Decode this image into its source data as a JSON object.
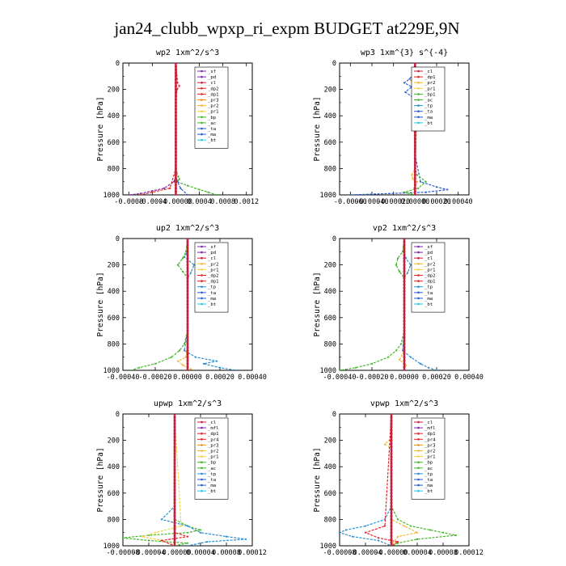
{
  "title": "jan24_clubb_wpxp_ri_expm  BUDGET at229E,9N",
  "colors": {
    "sf": "#7b2aa8",
    "pd": "#7b2aa8",
    "cl": "#c81e3c",
    "dp2": "#e0262a",
    "dp1": "#e0262a",
    "pr3": "#f08c1a",
    "pr2": "#f2b733",
    "pr1": "#f0d24a",
    "bp": "#43b82a",
    "ac": "#43b82a",
    "ta": "#2a5fd0",
    "tp": "#2a8fd0",
    "ma": "#2a5fd0",
    "bt": "#28c9df",
    "mfl": "#7b2aa8",
    "pr4": "#e0262a"
  },
  "chart_data": [
    {
      "type": "line",
      "title": "wp2   1xm^2/s^3",
      "ylabel": "Pressure [hPa]",
      "ylim": [
        1000,
        0
      ],
      "xlim": [
        -0.0009,
        0.0013
      ],
      "xticks": [
        "-0.0008",
        "-0.0004",
        "-0.00000",
        "0.0004",
        "0.0008",
        "0.0012"
      ],
      "xtick_values": [
        -0.0008,
        -0.0004,
        0.0,
        0.0004,
        0.0008,
        0.0012
      ],
      "yticks": [
        0,
        200,
        400,
        600,
        800,
        1000
      ],
      "legend_position": "upper-right",
      "legend": [
        "_sf",
        "_pd",
        "_cl",
        "_dp2",
        "_dp1",
        "_pr3",
        "_pr2",
        "_pr1",
        "_bp",
        "_ac",
        "_ta",
        "_ma",
        "_bt"
      ],
      "series": [
        {
          "name": "_pd",
          "key": "pd",
          "p": [
            0,
            150,
            200,
            300,
            700,
            850,
            900,
            950,
            970,
            990,
            1000
          ],
          "v": [
            0,
            0,
            1e-05,
            0,
            0,
            0,
            -3e-05,
            -0.0002,
            -0.0004,
            -0.0006,
            -0.0008
          ]
        },
        {
          "name": "_dp1",
          "key": "dp1",
          "p": [
            0,
            150,
            175,
            200,
            300,
            800,
            950,
            980,
            1000
          ],
          "v": [
            0,
            3e-05,
            6e-05,
            2e-05,
            0,
            0,
            -0.0001,
            -0.0004,
            -0.0006
          ]
        },
        {
          "name": "_ac",
          "key": "ac",
          "p": [
            0,
            800,
            860,
            880,
            900,
            930,
            960,
            980,
            1000
          ],
          "v": [
            0,
            0,
            4e-05,
            6e-05,
            2e-05,
            0.0002,
            0.0004,
            0.00055,
            0.0007
          ]
        },
        {
          "name": "_ta",
          "key": "ta",
          "p": [
            0,
            850,
            900,
            950,
            1000
          ],
          "v": [
            0,
            -1e-05,
            3e-05,
            8e-05,
            0.0002
          ]
        },
        {
          "name": "_cl",
          "key": "cl",
          "p": [
            0,
            1000
          ],
          "v": [
            0,
            0
          ]
        }
      ]
    },
    {
      "type": "line",
      "title": "wp3   1xm^{3} s^{-4}",
      "ylabel": "Pressure [hPa]",
      "ylim": [
        1000,
        0
      ],
      "xlim": [
        -0.0007,
        0.0005
      ],
      "xticks": [
        "-0.00060",
        "-0.00040",
        "-0.00020",
        "0.00000",
        "0.00020",
        "0.00040"
      ],
      "xtick_values": [
        -0.0006,
        -0.0004,
        -0.0002,
        0.0,
        0.0002,
        0.0004
      ],
      "yticks": [
        0,
        200,
        400,
        600,
        800,
        1000
      ],
      "legend_position": "upper-right",
      "legend": [
        "_cl",
        "_dp1",
        "_pr2",
        "_pr1",
        "_bp1",
        "_ac",
        "_tp",
        "_ta",
        "_ma",
        "_bt"
      ],
      "series": [
        {
          "name": "_tp",
          "key": "ta",
          "p": [
            0,
            80,
            120,
            150,
            180,
            220,
            260,
            300,
            350,
            400,
            450,
            700,
            900,
            940,
            960,
            980,
            1000
          ],
          "v": [
            0,
            -2e-05,
            -5e-05,
            -0.0001,
            -3e-05,
            -9e-05,
            -2e-05,
            3e-05,
            -2e-05,
            2e-05,
            0,
            0,
            5e-05,
            0.0002,
            0.0003,
            0.0001,
            -0.0006
          ]
        },
        {
          "name": "_ac",
          "key": "ac",
          "p": [
            0,
            100,
            150,
            200,
            250,
            300,
            800,
            850,
            900,
            950,
            980,
            1000
          ],
          "v": [
            0,
            2e-05,
            5e-05,
            4e-05,
            5e-05,
            2e-05,
            0,
            2e-05,
            0.0001,
            3e-05,
            -0.0001,
            0
          ]
        },
        {
          "name": "_pr2",
          "key": "pr2",
          "p": [
            0,
            100,
            130,
            160,
            800,
            850,
            880,
            900,
            950,
            1000
          ],
          "v": [
            0,
            -1e-05,
            -4e-05,
            -1e-05,
            0,
            -3e-05,
            -2e-05,
            2e-05,
            -1e-05,
            0
          ]
        },
        {
          "name": "_cl",
          "key": "cl",
          "p": [
            0,
            1000
          ],
          "v": [
            0,
            0
          ]
        }
      ]
    },
    {
      "type": "line",
      "title": "up2   1xm^2/s^3",
      "ylabel": "Pressure [hPa]",
      "ylim": [
        1000,
        0
      ],
      "xlim": [
        -0.0004,
        0.0004
      ],
      "xticks": [
        "-0.00040",
        "-0.00020",
        "0.00000",
        "0.00020",
        "0.00040"
      ],
      "xtick_values": [
        -0.0004,
        -0.0002,
        0.0,
        0.0002,
        0.0004
      ],
      "yticks": [
        0,
        200,
        400,
        600,
        800,
        1000
      ],
      "legend_position": "upper-right",
      "legend": [
        "_sf",
        "_pd",
        "_cl",
        "_pr2",
        "_pr1",
        "_dp2",
        "_dp1",
        "_tp",
        "_ta",
        "_ma",
        "_bt"
      ],
      "series": [
        {
          "name": "_tp",
          "key": "tp",
          "p": [
            0,
            100,
            140,
            200,
            260,
            300,
            700,
            850,
            900,
            930,
            950,
            980,
            1000
          ],
          "v": [
            0,
            0,
            -2e-05,
            4e-05,
            2e-05,
            0,
            0,
            -2e-05,
            5e-05,
            0.00018,
            0.0001,
            0.0002,
            0.0003
          ]
        },
        {
          "name": "_dp2",
          "key": "ac",
          "p": [
            0,
            100,
            150,
            200,
            250,
            300,
            700,
            800,
            850,
            900,
            950,
            980,
            1000
          ],
          "v": [
            0,
            -1e-05,
            -3e-05,
            -6e-05,
            -3e-05,
            0,
            0,
            -2e-05,
            -5e-05,
            -0.0001,
            -0.0002,
            -0.0003,
            -0.00035
          ]
        },
        {
          "name": "_pr2",
          "key": "pr2",
          "p": [
            0,
            800,
            900,
            930,
            960,
            990,
            1000
          ],
          "v": [
            0,
            0,
            -1e-05,
            -6e-05,
            -3e-05,
            2e-05,
            0
          ]
        },
        {
          "name": "_cl",
          "key": "cl",
          "p": [
            0,
            1000
          ],
          "v": [
            0,
            0
          ]
        }
      ]
    },
    {
      "type": "line",
      "title": "vp2   1xm^2/s^3",
      "ylabel": "Pressure [hPa]",
      "ylim": [
        1000,
        0
      ],
      "xlim": [
        -0.0004,
        0.0004
      ],
      "xticks": [
        "-0.00040",
        "-0.00020",
        "0.00000",
        "0.00020",
        "0.00040"
      ],
      "xtick_values": [
        -0.0004,
        -0.0002,
        0.0,
        0.0002,
        0.0004
      ],
      "yticks": [
        0,
        200,
        400,
        600,
        800,
        1000
      ],
      "legend_position": "upper-right",
      "legend": [
        "_sf",
        "_pd",
        "_cl",
        "_pr2",
        "_pr1",
        "_dp2",
        "_dp1",
        "_tp",
        "_ta",
        "_ma",
        "_bt"
      ],
      "series": [
        {
          "name": "_tp",
          "key": "tp",
          "p": [
            0,
            100,
            150,
            200,
            260,
            300,
            700,
            850,
            900,
            950,
            980,
            1000
          ],
          "v": [
            0,
            0,
            1e-05,
            4e-05,
            2e-05,
            0,
            0,
            -1e-05,
            4e-05,
            0.0001,
            0.00015,
            0.0002
          ]
        },
        {
          "name": "_dp2",
          "key": "ac",
          "p": [
            0,
            100,
            150,
            200,
            250,
            300,
            700,
            800,
            850,
            900,
            950,
            980,
            1000
          ],
          "v": [
            0,
            -1e-05,
            -4e-05,
            -5e-05,
            -3e-05,
            0,
            0,
            -2e-05,
            -5e-05,
            -0.0001,
            -0.0002,
            -0.0003,
            -0.0004
          ]
        },
        {
          "name": "_pr2",
          "key": "pr2",
          "p": [
            0,
            850,
            920,
            960,
            1000
          ],
          "v": [
            0,
            0,
            -3e-05,
            1e-05,
            0
          ]
        },
        {
          "name": "_cl",
          "key": "cl",
          "p": [
            0,
            1000
          ],
          "v": [
            0,
            0
          ]
        }
      ]
    },
    {
      "type": "line",
      "title": "upwp   1xm^2/s^3",
      "ylabel": "Pressure [hPa]",
      "ylim": [
        1000,
        0
      ],
      "xlim": [
        -8e-05,
        0.00012
      ],
      "xticks": [
        "-0.00008",
        "-0.00004",
        "-0.00000",
        "0.00004",
        "0.00008",
        "0.00012"
      ],
      "xtick_values": [
        -8e-05,
        -4e-05,
        0.0,
        4e-05,
        8e-05,
        0.00012
      ],
      "yticks": [
        0,
        200,
        400,
        600,
        800,
        1000
      ],
      "legend_position": "upper-right",
      "legend": [
        "_cl",
        "_mfl",
        "_dp1",
        "_pr4",
        "_pr3",
        "_pr2",
        "_pr1",
        "_bp",
        "_ac",
        "_tp",
        "_ta",
        "_ma",
        "_bt"
      ],
      "series": [
        {
          "name": "_bp",
          "key": "ac",
          "p": [
            0,
            800,
            850,
            880,
            900,
            920,
            940,
            960,
            980,
            1000
          ],
          "v": [
            0,
            0,
            2e-05,
            4e-05,
            2e-05,
            -4e-05,
            -8e-05,
            -4e-05,
            2e-05,
            0
          ]
        },
        {
          "name": "_tp",
          "key": "tp",
          "p": [
            0,
            700,
            800,
            850,
            900,
            930,
            950,
            970,
            1000
          ],
          "v": [
            0,
            0,
            -2e-05,
            2e-05,
            4e-05,
            8e-05,
            0.00011,
            5e-05,
            2e-05
          ]
        },
        {
          "name": "_pr1",
          "key": "pr1",
          "p": [
            0,
            850,
            900,
            930,
            960,
            1000
          ],
          "v": [
            0,
            1e-05,
            -3e-05,
            -5e-05,
            -2e-05,
            0
          ]
        },
        {
          "name": "_dp1",
          "key": "dp1",
          "p": [
            0,
            900,
            930,
            960,
            1000
          ],
          "v": [
            0,
            0,
            2e-05,
            -2e-05,
            0
          ]
        },
        {
          "name": "_cl",
          "key": "cl",
          "p": [
            0,
            1000
          ],
          "v": [
            0,
            0
          ]
        }
      ]
    },
    {
      "type": "line",
      "title": "vpwp   1xm^2/s^3",
      "ylabel": "Pressure [hPa]",
      "ylim": [
        1000,
        0
      ],
      "xlim": [
        -8e-05,
        0.00012
      ],
      "xticks": [
        "-0.00008",
        "-0.00004",
        "-0.00000",
        "0.00004",
        "0.00008",
        "0.00012"
      ],
      "xtick_values": [
        -8e-05,
        -4e-05,
        0.0,
        4e-05,
        8e-05,
        0.00012
      ],
      "yticks": [
        0,
        200,
        400,
        600,
        800,
        1000
      ],
      "legend_position": "upper-right",
      "legend": [
        "_cl",
        "_mfl",
        "_dp1",
        "_pr4",
        "_pr3",
        "_pr2",
        "_pr1",
        "_bp",
        "_ac",
        "_tp",
        "_ta",
        "_ma",
        "_bt"
      ],
      "series": [
        {
          "name": "_tp",
          "key": "tp",
          "p": [
            0,
            700,
            800,
            850,
            880,
            900,
            930,
            960,
            1000
          ],
          "v": [
            0,
            0,
            -1e-05,
            -4e-05,
            -7e-05,
            -8e-05,
            -6e-05,
            -2e-05,
            0
          ]
        },
        {
          "name": "_bp",
          "key": "ac",
          "p": [
            0,
            700,
            800,
            850,
            880,
            900,
            920,
            950,
            980,
            1000
          ],
          "v": [
            0,
            0,
            1e-05,
            3e-05,
            6e-05,
            8e-05,
            0.0001,
            4e-05,
            1e-05,
            0
          ]
        },
        {
          "name": "_pr2",
          "key": "pr2",
          "p": [
            0,
            180,
            230,
            260,
            800,
            850,
            900,
            930,
            1000
          ],
          "v": [
            0,
            0,
            -1e-05,
            0,
            0,
            2e-05,
            4e-05,
            1e-05,
            0
          ]
        },
        {
          "name": "_dp1",
          "key": "dp1",
          "p": [
            0,
            850,
            900,
            940,
            970,
            1000
          ],
          "v": [
            0,
            -1e-05,
            -4e-05,
            -2e-05,
            1e-05,
            0
          ]
        },
        {
          "name": "_cl",
          "key": "cl",
          "p": [
            0,
            1000
          ],
          "v": [
            0,
            0
          ]
        }
      ]
    }
  ]
}
